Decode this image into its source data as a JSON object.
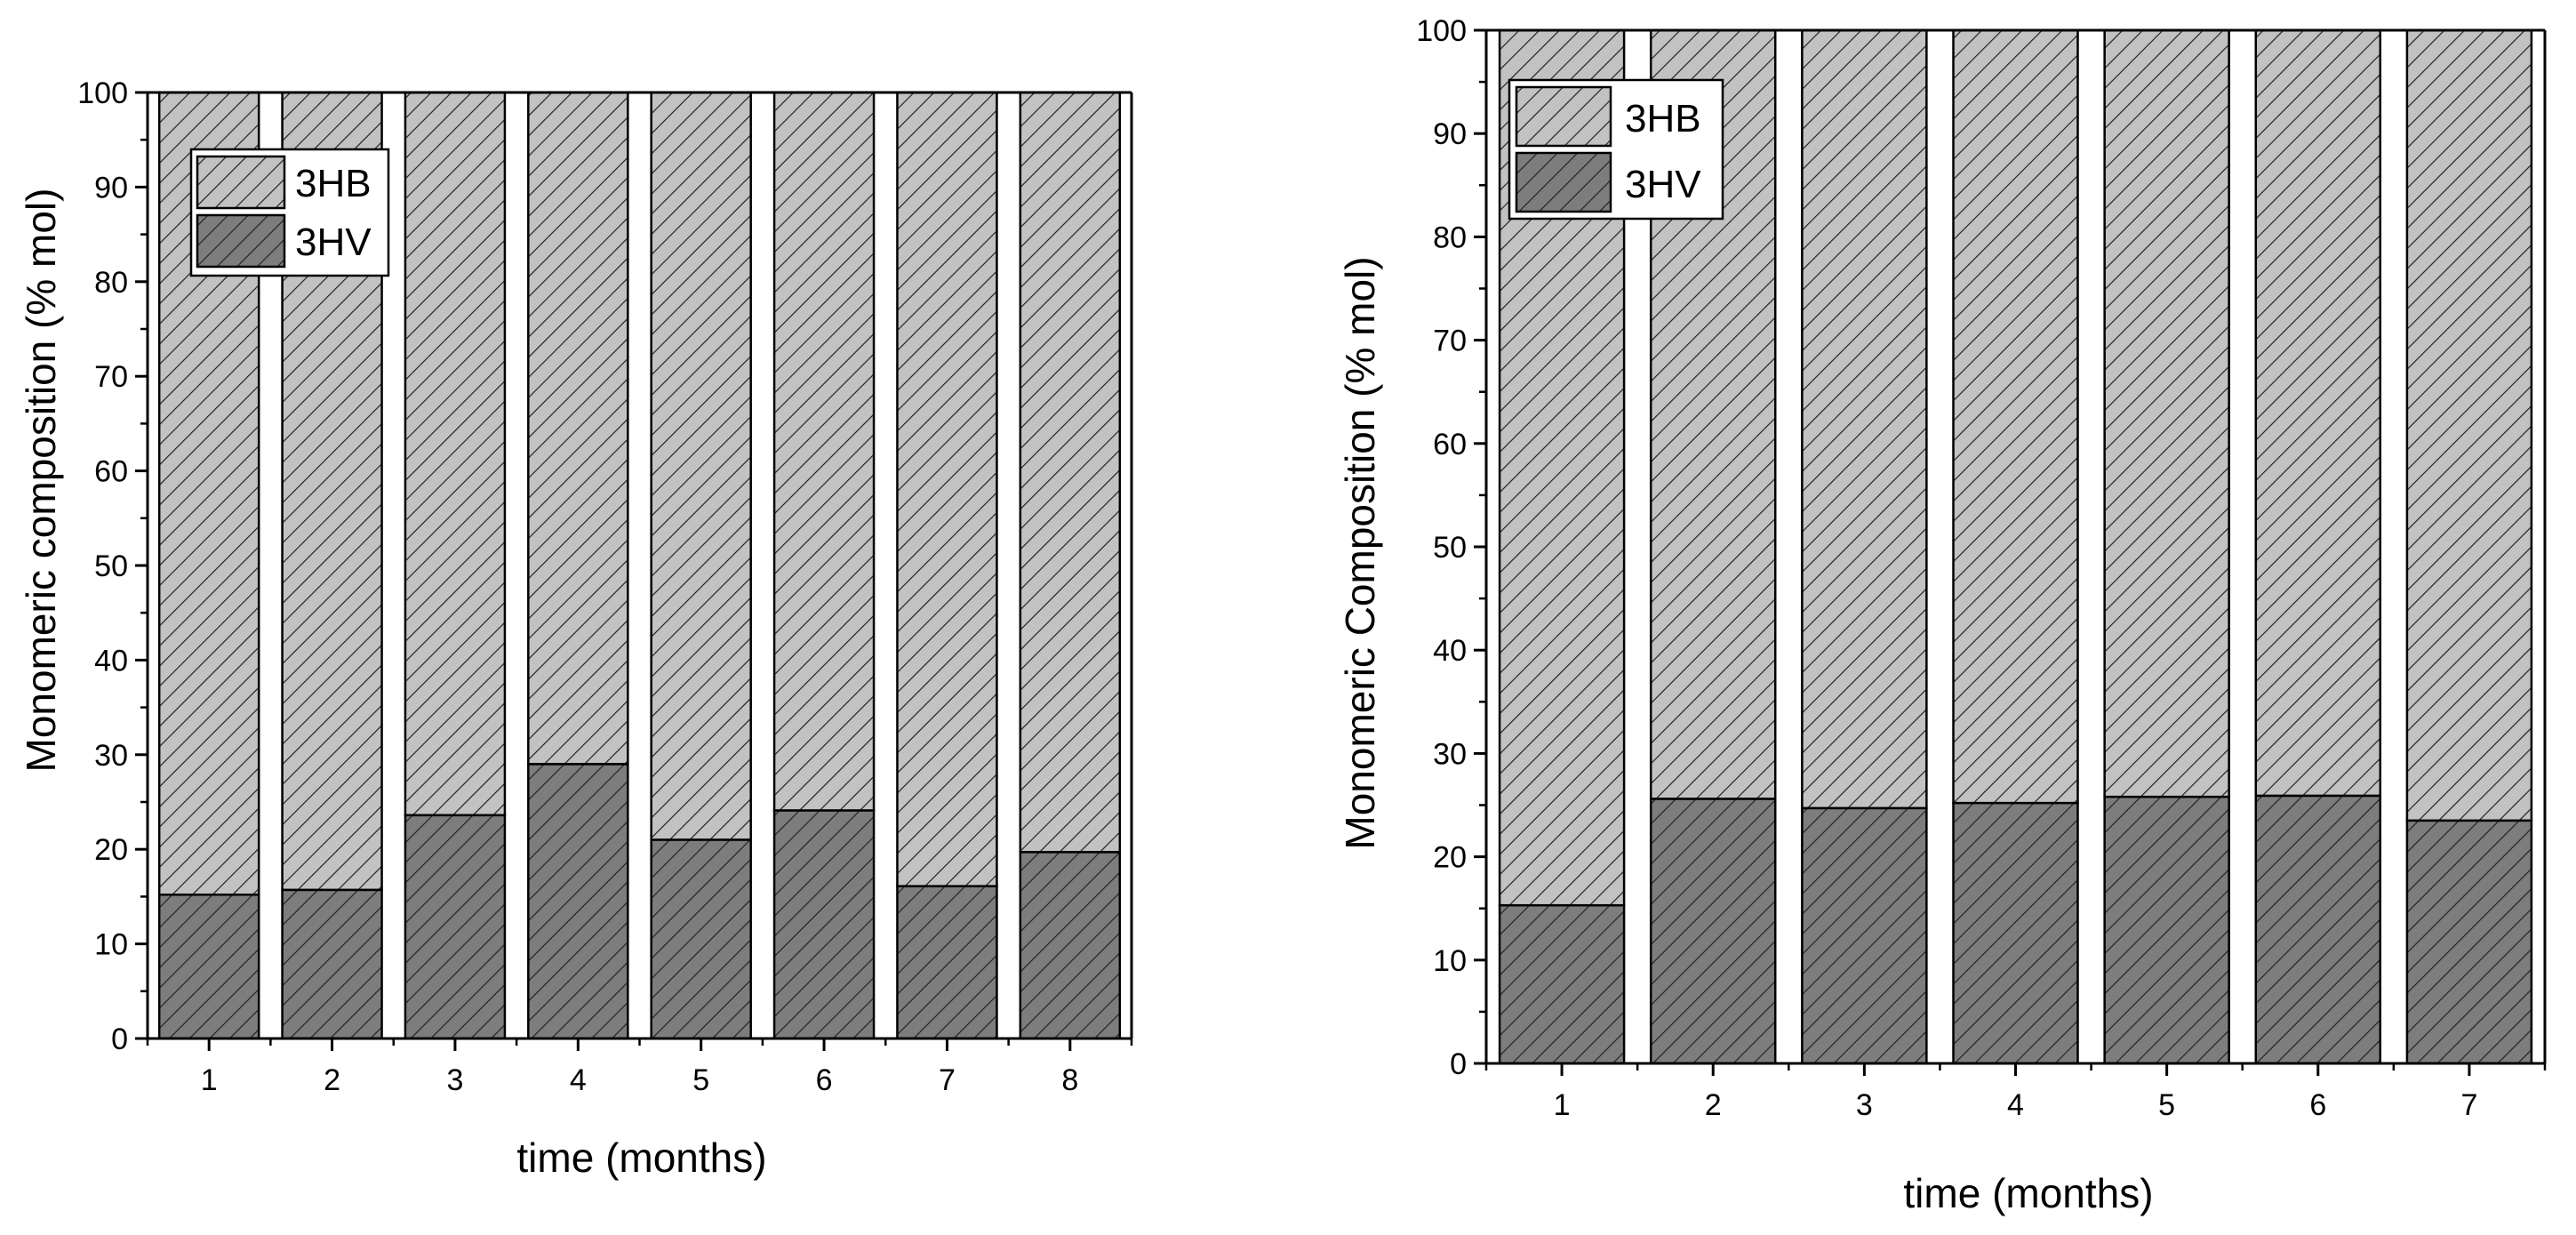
{
  "colors": {
    "hb_fill": "#c2c2c2",
    "hv_fill": "#7d7d7d",
    "hatch": "#222222",
    "axis": "#000000",
    "background": "#ffffff"
  },
  "chart_data": [
    {
      "type": "bar",
      "stacked": true,
      "categories": [
        "1",
        "2",
        "3",
        "4",
        "5",
        "6",
        "7",
        "8"
      ],
      "series": [
        {
          "name": "3HV",
          "values": [
            15.2,
            15.7,
            23.6,
            29.0,
            21.0,
            24.1,
            16.1,
            19.7
          ]
        },
        {
          "name": "3HB",
          "values": [
            84.8,
            84.3,
            76.4,
            71.0,
            79.0,
            75.9,
            83.9,
            80.3
          ]
        }
      ],
      "legend": [
        "3HB",
        "3HV"
      ],
      "legend_position": "top-left",
      "title": "",
      "xlabel": "time (months)",
      "ylabel": "Monomeric composition (% mol)",
      "ylim": [
        0,
        100
      ],
      "yticks": [
        "0",
        "10",
        "20",
        "30",
        "40",
        "50",
        "60",
        "70",
        "80",
        "90",
        "100"
      ],
      "grid": false
    },
    {
      "type": "bar",
      "stacked": true,
      "categories": [
        "1",
        "2",
        "3",
        "4",
        "5",
        "6",
        "7"
      ],
      "series": [
        {
          "name": "3HV",
          "values": [
            15.3,
            25.6,
            24.7,
            25.2,
            25.8,
            25.9,
            23.5
          ]
        },
        {
          "name": "3HB",
          "values": [
            84.7,
            74.4,
            75.3,
            74.8,
            74.2,
            74.1,
            76.5
          ]
        }
      ],
      "legend": [
        "3HB",
        "3HV"
      ],
      "legend_position": "top-left",
      "title": "",
      "xlabel": "time (months)",
      "ylabel": "Monomeric Composition (% mol)",
      "ylim": [
        0,
        100
      ],
      "yticks": [
        "0",
        "10",
        "20",
        "30",
        "40",
        "50",
        "60",
        "70",
        "80",
        "90",
        "100"
      ],
      "grid": false
    }
  ]
}
